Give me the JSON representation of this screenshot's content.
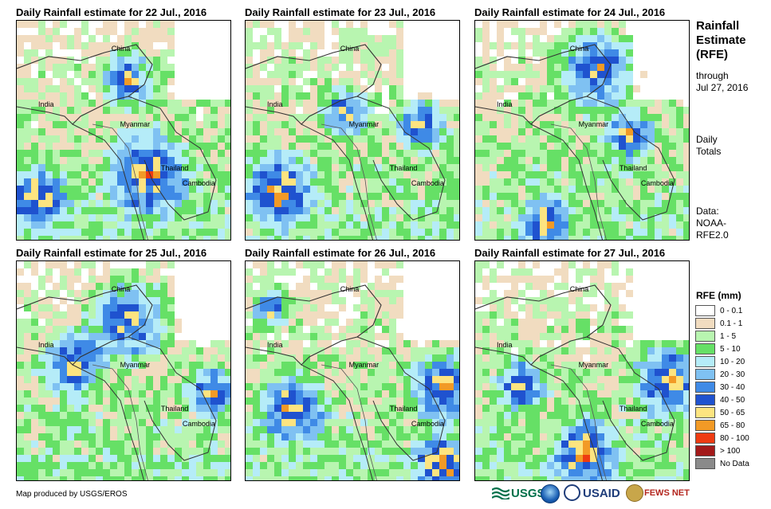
{
  "panels": [
    {
      "title": "Daily Rainfall estimate for 22 Jul., 2016",
      "label_china": "China",
      "label_india": "India",
      "label_myanmar": "Myanmar",
      "label_thailand": "Thailand",
      "label_cambodia": "Cambodia"
    },
    {
      "title": "Daily Rainfall estimate for 23 Jul., 2016",
      "label_china": "China",
      "label_india": "India",
      "label_myanmar": "Myanmar",
      "label_thailand": "Thailand",
      "label_cambodia": "Cambodia"
    },
    {
      "title": "Daily Rainfall estimate for 24 Jul., 2016",
      "label_china": "China",
      "label_india": "India",
      "label_myanmar": "Myanmar",
      "label_thailand": "Thailand",
      "label_cambodia": "Cambodia"
    },
    {
      "title": "Daily Rainfall estimate for 25 Jul., 2016",
      "label_china": "China",
      "label_india": "India",
      "label_myanmar": "Myanmar",
      "label_thailand": "Thailand",
      "label_cambodia": "Cambodia"
    },
    {
      "title": "Daily Rainfall estimate for 26 Jul., 2016",
      "label_china": "China",
      "label_india": "India",
      "label_myanmar": "Myanmar",
      "label_thailand": "Thailand",
      "label_cambodia": "Cambodia"
    },
    {
      "title": "Daily Rainfall estimate for 27 Jul., 2016",
      "label_china": "China",
      "label_india": "India",
      "label_myanmar": "Myanmar",
      "label_thailand": "Thailand",
      "label_cambodia": "Cambodia"
    }
  ],
  "sidebar": {
    "title_line1": "Rainfall",
    "title_line2": "Estimate",
    "title_line3": "(RFE)",
    "through_label": "through",
    "through_date": "Jul 27, 2016",
    "totals_line1": "Daily",
    "totals_line2": "Totals",
    "data_line1": "Data:",
    "data_line2": "NOAA-",
    "data_line3": "RFE2.0"
  },
  "legend": {
    "title": "RFE (mm)",
    "items": [
      {
        "label": "0 - 0.1",
        "color": "#ffffff"
      },
      {
        "label": "0.1 - 1",
        "color": "#f1dcc0"
      },
      {
        "label": "1 - 5",
        "color": "#b8f5b0"
      },
      {
        "label": "5 - 10",
        "color": "#66e066"
      },
      {
        "label": "10 - 20",
        "color": "#b5ecf8"
      },
      {
        "label": "20 - 30",
        "color": "#7fc1f2"
      },
      {
        "label": "30 - 40",
        "color": "#3f8ae6"
      },
      {
        "label": "40 - 50",
        "color": "#1f52cf"
      },
      {
        "label": "50 - 65",
        "color": "#fde480"
      },
      {
        "label": "65 - 80",
        "color": "#f29a26"
      },
      {
        "label": "80 - 100",
        "color": "#ee3b12"
      },
      {
        "label": "> 100",
        "color": "#a31a1a"
      },
      {
        "label": "No Data",
        "color": "#8a8a8a"
      }
    ]
  },
  "footer": {
    "credit": "Map produced by USGS/EROS",
    "logo_usgs": "USGS",
    "logo_usaid": "USAID",
    "logo_fewsnet": "FEWS NET"
  }
}
